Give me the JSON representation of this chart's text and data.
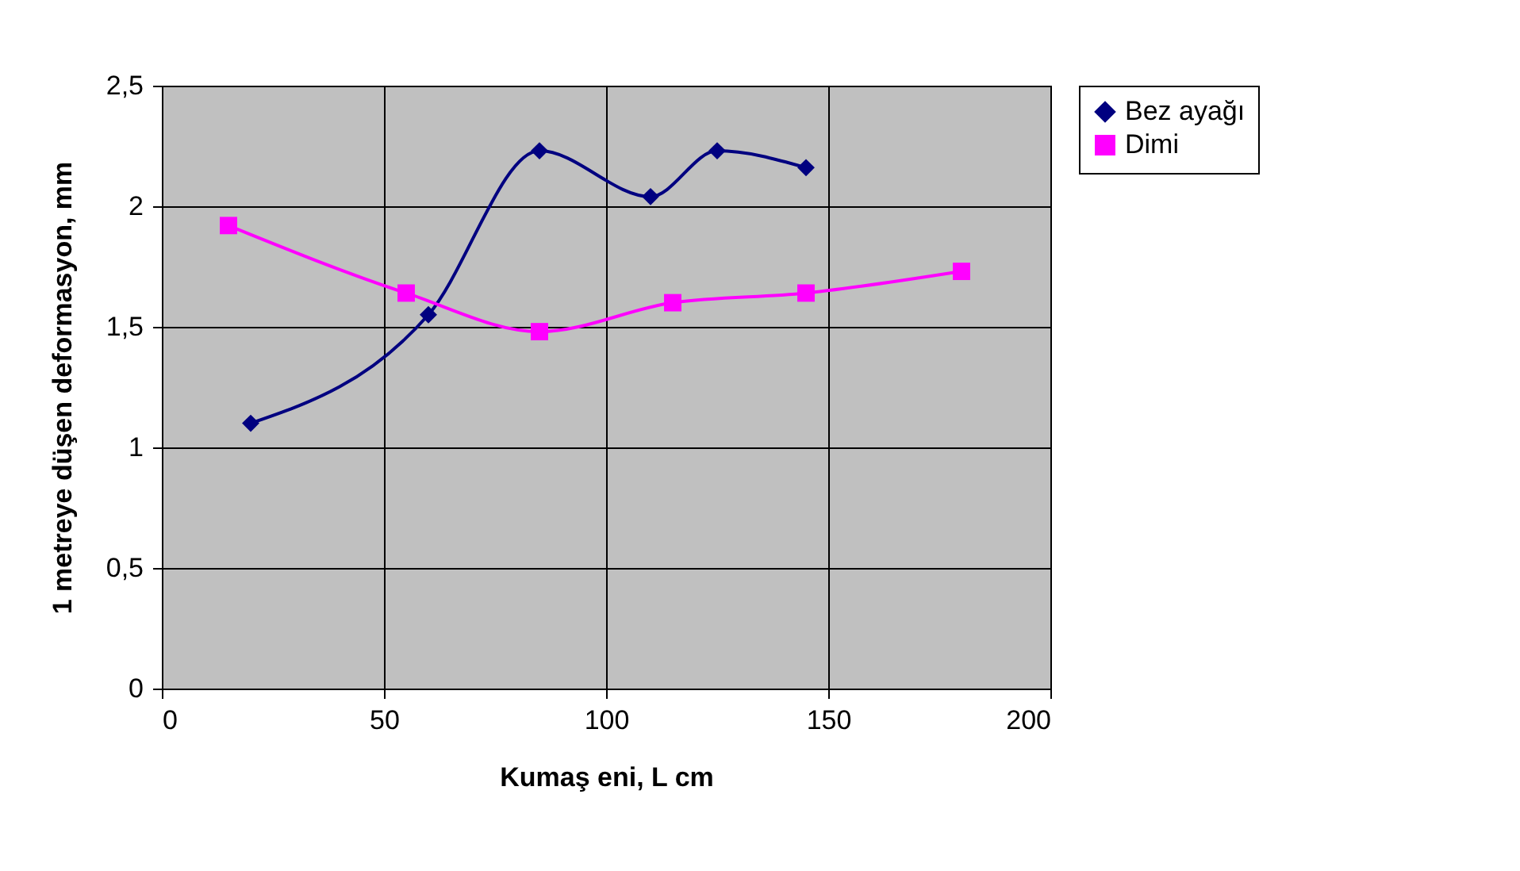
{
  "chart_data": {
    "type": "line",
    "xlabel": "Kumaş eni, L cm",
    "ylabel": "1 metreye düşen deformasyon, mm",
    "series": [
      {
        "name": "Bez ayağı",
        "color": "#000080",
        "marker": "diamond",
        "x": [
          20,
          60,
          85,
          110,
          125,
          145
        ],
        "values": [
          1.1,
          1.55,
          2.23,
          2.04,
          2.23,
          2.16
        ]
      },
      {
        "name": "Dimi",
        "color": "#ff00ff",
        "marker": "square",
        "x": [
          15,
          55,
          85,
          115,
          145,
          180
        ],
        "values": [
          1.92,
          1.64,
          1.48,
          1.6,
          1.64,
          1.73
        ]
      }
    ],
    "xlim": [
      0,
      200
    ],
    "xticks": [
      0,
      50,
      100,
      150,
      200
    ],
    "ylim": [
      0,
      2.5
    ],
    "yticks": [
      0,
      {
        "value": 0.5,
        "label": "0,5"
      },
      1,
      {
        "value": 1.5,
        "label": "1,5"
      },
      2,
      {
        "value": 2.5,
        "label": "2,5"
      }
    ],
    "grid": true,
    "legend": "right",
    "line_style": "solid"
  }
}
